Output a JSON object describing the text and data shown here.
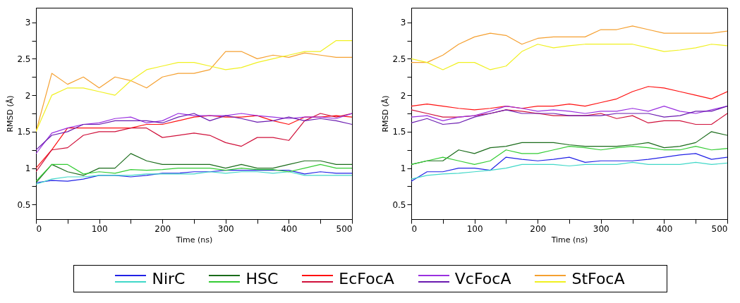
{
  "chart_data": [
    {
      "type": "line",
      "xlabel": "Time (ns)",
      "ylabel": "RMSD (Å)",
      "xlim": [
        0,
        500
      ],
      "ylim": [
        0.3,
        3.2
      ],
      "xticks": [
        0,
        {
          "value": 50,
          "label": null
        },
        100,
        {
          "value": 150,
          "label": null
        },
        200,
        {
          "value": 250,
          "label": null
        },
        300,
        {
          "value": 350,
          "label": null
        },
        400,
        {
          "value": 450,
          "label": null
        },
        500
      ],
      "yticks": [
        0.5,
        {
          "value": 0.75,
          "label": null
        },
        1,
        {
          "value": 1.25,
          "label": null
        },
        1.5,
        {
          "value": 1.75,
          "label": null
        },
        2,
        {
          "value": 2.25,
          "label": null
        },
        2.5,
        {
          "value": 2.75,
          "label": null
        },
        3
      ],
      "grid": false,
      "legend": "bottom",
      "x": [
        0,
        25,
        50,
        75,
        100,
        125,
        150,
        175,
        200,
        225,
        250,
        275,
        300,
        325,
        350,
        375,
        400,
        425,
        450,
        475,
        500
      ],
      "series": [
        {
          "name": "NirC",
          "color": "#2222e6",
          "values": [
            0.8,
            0.83,
            0.82,
            0.85,
            0.9,
            0.9,
            0.88,
            0.9,
            0.93,
            0.93,
            0.95,
            0.95,
            0.97,
            0.97,
            0.97,
            0.97,
            0.97,
            0.92,
            0.95,
            0.93,
            0.93
          ]
        },
        {
          "color": "#40d8c8",
          "values": [
            0.78,
            0.85,
            0.88,
            0.88,
            0.9,
            0.9,
            0.9,
            0.92,
            0.92,
            0.92,
            0.92,
            0.95,
            0.93,
            0.95,
            0.95,
            0.93,
            0.95,
            0.9,
            0.9,
            0.9,
            0.9
          ]
        },
        {
          "name": "HSC",
          "color": "#1a6b1a",
          "values": [
            0.8,
            1.05,
            0.95,
            0.9,
            1.0,
            1.0,
            1.2,
            1.1,
            1.05,
            1.05,
            1.05,
            1.05,
            1.0,
            1.05,
            1.0,
            1.0,
            1.05,
            1.1,
            1.1,
            1.05,
            1.05
          ]
        },
        {
          "color": "#33cc33",
          "values": [
            0.82,
            1.05,
            1.05,
            0.92,
            0.95,
            0.93,
            0.98,
            0.97,
            0.98,
            1.0,
            1.0,
            1.0,
            0.97,
            1.0,
            0.98,
            0.98,
            0.95,
            1.0,
            1.05,
            1.0,
            1.0
          ]
        },
        {
          "name": "EcFocA",
          "color": "#ff1010",
          "values": [
            1.0,
            1.25,
            1.55,
            1.55,
            1.55,
            1.55,
            1.55,
            1.6,
            1.6,
            1.65,
            1.7,
            1.72,
            1.7,
            1.7,
            1.72,
            1.65,
            1.6,
            1.7,
            1.7,
            1.72,
            1.7
          ]
        },
        {
          "color": "#d0103a",
          "values": [
            0.95,
            1.25,
            1.28,
            1.45,
            1.5,
            1.5,
            1.55,
            1.55,
            1.42,
            1.45,
            1.48,
            1.45,
            1.35,
            1.3,
            1.42,
            1.42,
            1.38,
            1.65,
            1.75,
            1.7,
            1.75
          ]
        },
        {
          "name": "VcFocA",
          "color": "#9a30e0",
          "values": [
            1.2,
            1.48,
            1.55,
            1.6,
            1.62,
            1.68,
            1.7,
            1.62,
            1.65,
            1.75,
            1.72,
            1.72,
            1.72,
            1.75,
            1.72,
            1.7,
            1.68,
            1.7,
            1.7,
            1.68,
            1.75
          ]
        },
        {
          "color": "#6a1ab0",
          "values": [
            1.25,
            1.45,
            1.5,
            1.6,
            1.6,
            1.65,
            1.65,
            1.65,
            1.62,
            1.7,
            1.75,
            1.65,
            1.72,
            1.68,
            1.63,
            1.65,
            1.7,
            1.65,
            1.68,
            1.65,
            1.6
          ]
        },
        {
          "name": "StFocA",
          "color": "#f5a030",
          "values": [
            1.5,
            2.3,
            2.15,
            2.25,
            2.1,
            2.25,
            2.2,
            2.1,
            2.25,
            2.3,
            2.3,
            2.35,
            2.6,
            2.6,
            2.5,
            2.55,
            2.52,
            2.58,
            2.55,
            2.52,
            2.52
          ]
        },
        {
          "color": "#f0f020",
          "values": [
            1.5,
            2.0,
            2.1,
            2.1,
            2.05,
            2.0,
            2.2,
            2.35,
            2.4,
            2.45,
            2.45,
            2.4,
            2.35,
            2.38,
            2.45,
            2.5,
            2.55,
            2.6,
            2.6,
            2.75,
            2.75
          ]
        }
      ]
    },
    {
      "type": "line",
      "xlabel": "Time (ns)",
      "ylabel": "RMSD (Å)",
      "xlim": [
        0,
        500
      ],
      "ylim": [
        0.3,
        3.2
      ],
      "xticks": [
        0,
        {
          "value": 50,
          "label": null
        },
        100,
        {
          "value": 150,
          "label": null
        },
        200,
        {
          "value": 250,
          "label": null
        },
        300,
        {
          "value": 350,
          "label": null
        },
        400,
        {
          "value": 450,
          "label": null
        },
        500
      ],
      "yticks": [
        0.5,
        {
          "value": 0.75,
          "label": null
        },
        1,
        {
          "value": 1.25,
          "label": null
        },
        1.5,
        {
          "value": 1.75,
          "label": null
        },
        2,
        {
          "value": 2.25,
          "label": null
        },
        2.5,
        {
          "value": 2.75,
          "label": null
        },
        3
      ],
      "grid": false,
      "x": [
        0,
        25,
        50,
        75,
        100,
        125,
        150,
        175,
        200,
        225,
        250,
        275,
        300,
        325,
        350,
        375,
        400,
        425,
        450,
        475,
        500
      ],
      "series": [
        {
          "name": "NirC",
          "color": "#2222e6",
          "values": [
            0.82,
            0.95,
            0.95,
            1.0,
            1.0,
            0.97,
            1.15,
            1.12,
            1.1,
            1.12,
            1.15,
            1.08,
            1.1,
            1.1,
            1.1,
            1.12,
            1.15,
            1.18,
            1.2,
            1.12,
            1.15
          ]
        },
        {
          "color": "#40d8c8",
          "values": [
            0.85,
            0.9,
            0.92,
            0.93,
            0.95,
            0.97,
            1.0,
            1.05,
            1.05,
            1.05,
            1.03,
            1.05,
            1.05,
            1.05,
            1.08,
            1.05,
            1.05,
            1.05,
            1.08,
            1.05,
            1.07
          ]
        },
        {
          "name": "HSC",
          "color": "#1a6b1a",
          "values": [
            1.05,
            1.1,
            1.1,
            1.25,
            1.2,
            1.28,
            1.3,
            1.35,
            1.35,
            1.35,
            1.32,
            1.3,
            1.3,
            1.3,
            1.32,
            1.35,
            1.28,
            1.3,
            1.35,
            1.5,
            1.45
          ]
        },
        {
          "color": "#33cc33",
          "values": [
            1.05,
            1.1,
            1.15,
            1.1,
            1.05,
            1.1,
            1.25,
            1.2,
            1.2,
            1.25,
            1.3,
            1.28,
            1.25,
            1.28,
            1.3,
            1.28,
            1.25,
            1.25,
            1.3,
            1.25,
            1.27
          ]
        },
        {
          "name": "EcFocA",
          "color": "#ff1010",
          "values": [
            1.85,
            1.88,
            1.85,
            1.82,
            1.8,
            1.82,
            1.85,
            1.82,
            1.85,
            1.85,
            1.88,
            1.85,
            1.9,
            1.95,
            2.05,
            2.12,
            2.1,
            2.05,
            2.0,
            1.95,
            2.05
          ]
        },
        {
          "color": "#d0103a",
          "values": [
            1.8,
            1.75,
            1.7,
            1.7,
            1.72,
            1.75,
            1.8,
            1.78,
            1.75,
            1.72,
            1.72,
            1.72,
            1.75,
            1.68,
            1.72,
            1.62,
            1.65,
            1.65,
            1.6,
            1.6,
            1.75
          ]
        },
        {
          "name": "VcFocA",
          "color": "#9a30e0",
          "values": [
            1.7,
            1.72,
            1.65,
            1.7,
            1.72,
            1.78,
            1.85,
            1.82,
            1.78,
            1.8,
            1.78,
            1.75,
            1.78,
            1.78,
            1.82,
            1.78,
            1.85,
            1.78,
            1.75,
            1.8,
            1.85
          ]
        },
        {
          "color": "#6a1ab0",
          "values": [
            1.62,
            1.68,
            1.6,
            1.62,
            1.7,
            1.75,
            1.8,
            1.75,
            1.75,
            1.75,
            1.72,
            1.72,
            1.72,
            1.75,
            1.75,
            1.75,
            1.7,
            1.72,
            1.78,
            1.78,
            1.85
          ]
        },
        {
          "name": "StFocA",
          "color": "#f5a030",
          "values": [
            2.45,
            2.45,
            2.55,
            2.7,
            2.8,
            2.85,
            2.82,
            2.7,
            2.78,
            2.8,
            2.8,
            2.8,
            2.9,
            2.9,
            2.95,
            2.9,
            2.85,
            2.85,
            2.85,
            2.85,
            2.88
          ]
        },
        {
          "color": "#f0f020",
          "values": [
            2.5,
            2.45,
            2.35,
            2.45,
            2.45,
            2.35,
            2.4,
            2.6,
            2.7,
            2.65,
            2.68,
            2.7,
            2.7,
            2.7,
            2.7,
            2.65,
            2.6,
            2.62,
            2.65,
            2.7,
            2.68
          ]
        }
      ]
    }
  ]
}
